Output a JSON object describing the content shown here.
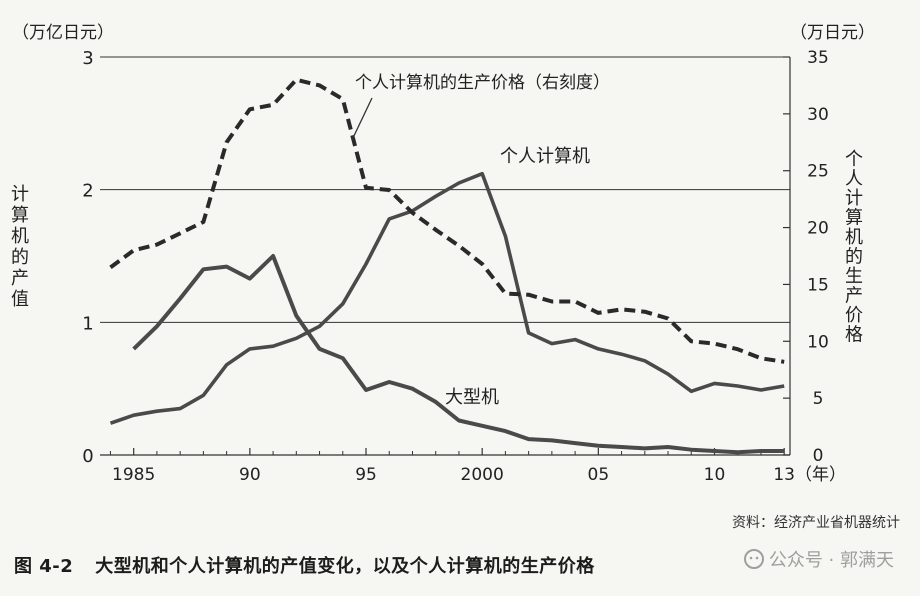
{
  "chart_data": {
    "type": "line",
    "x": [
      1984,
      1985,
      1986,
      1987,
      1988,
      1989,
      1990,
      1991,
      1992,
      1993,
      1994,
      1995,
      1996,
      1997,
      1998,
      1999,
      2000,
      2001,
      2002,
      2003,
      2004,
      2005,
      2006,
      2007,
      2008,
      2009,
      2010,
      2011,
      2012,
      2013
    ],
    "x_tick_labels": [
      "1985",
      "90",
      "95",
      "2000",
      "05",
      "10",
      "13"
    ],
    "x_tick_values": [
      1985,
      1990,
      1995,
      2000,
      2005,
      2010,
      2013
    ],
    "x_unit_label": "（年）",
    "left_axis": {
      "unit_label": "（万亿日元）",
      "title": "计算机的产值",
      "ylim": [
        0,
        3
      ],
      "ticks": [
        0,
        1,
        2,
        3
      ]
    },
    "right_axis": {
      "unit_label": "（万日元）",
      "title": "个人计算机的生产价格",
      "ylim": [
        0,
        35
      ],
      "ticks": [
        0,
        5,
        10,
        15,
        20,
        25,
        30,
        35
      ]
    },
    "grid": "horizontal at left-axis 1, 2, 3",
    "series": [
      {
        "name": "大型机",
        "axis": "left",
        "style": "solid",
        "x": [
          1985,
          1986,
          1987,
          1988,
          1989,
          1990,
          1991,
          1992,
          1993,
          1994,
          1995,
          1996,
          1997,
          1998,
          1999,
          2000,
          2001,
          2002,
          2003,
          2004,
          2005,
          2006,
          2007,
          2008,
          2009,
          2010,
          2011,
          2012,
          2013
        ],
        "values": [
          0.8,
          0.97,
          1.18,
          1.4,
          1.42,
          1.33,
          1.5,
          1.05,
          0.8,
          0.73,
          0.49,
          0.55,
          0.5,
          0.4,
          0.26,
          0.22,
          0.18,
          0.12,
          0.11,
          0.09,
          0.07,
          0.06,
          0.05,
          0.06,
          0.04,
          0.03,
          0.02,
          0.03,
          0.03
        ]
      },
      {
        "name": "个人计算机",
        "axis": "left",
        "style": "solid",
        "x": [
          1984,
          1985,
          1986,
          1987,
          1988,
          1989,
          1990,
          1991,
          1992,
          1993,
          1994,
          1995,
          1996,
          1997,
          1998,
          1999,
          2000,
          2001,
          2002,
          2003,
          2004,
          2005,
          2006,
          2007,
          2008,
          2009,
          2010,
          2011,
          2012,
          2013
        ],
        "values": [
          0.24,
          0.3,
          0.33,
          0.35,
          0.45,
          0.68,
          0.8,
          0.82,
          0.88,
          0.97,
          1.14,
          1.44,
          1.78,
          1.84,
          1.95,
          2.05,
          2.12,
          1.65,
          0.92,
          0.84,
          0.87,
          0.8,
          0.76,
          0.71,
          0.61,
          0.48,
          0.54,
          0.52,
          0.49,
          0.52
        ]
      },
      {
        "name": "个人计算机的生产价格（右刻度）",
        "axis": "right",
        "style": "dashed",
        "x": [
          1984,
          1985,
          1986,
          1987,
          1988,
          1989,
          1990,
          1991,
          1992,
          1993,
          1994,
          1995,
          1996,
          1997,
          1998,
          1999,
          2000,
          2001,
          2002,
          2003,
          2004,
          2005,
          2006,
          2007,
          2008,
          2009,
          2010,
          2011,
          2012,
          2013
        ],
        "values": [
          16.5,
          18,
          18.5,
          19.5,
          20.5,
          27.5,
          30.4,
          30.8,
          33.0,
          32.5,
          31.3,
          23.5,
          23.3,
          21.3,
          19.8,
          18.4,
          16.8,
          14.2,
          14.1,
          13.5,
          13.5,
          12.5,
          12.8,
          12.6,
          12.0,
          10.0,
          9.8,
          9.3,
          8.5,
          8.2
        ]
      }
    ],
    "labels": {
      "mainframe": "大型机",
      "pc": "个人计算机",
      "price": "个人计算机的生产价格（右刻度）"
    }
  },
  "source": "资料：经济产业省机器统计",
  "caption": {
    "number": "图 4-2",
    "text": "大型机和个人计算机的产值变化，以及个人计算机的生产价格"
  },
  "watermark": "公众号 · 郭满天"
}
